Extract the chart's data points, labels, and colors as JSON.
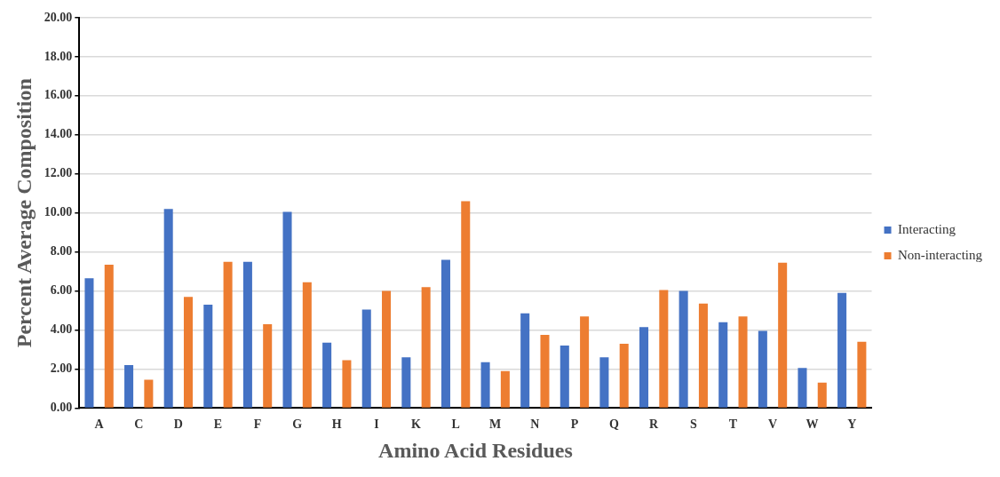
{
  "chart_data": {
    "type": "bar",
    "xlabel": "Amino Acid Residues",
    "ylabel": "Percent Average Composition",
    "categories": [
      "A",
      "C",
      "D",
      "E",
      "F",
      "G",
      "H",
      "I",
      "K",
      "L",
      "M",
      "N",
      "P",
      "Q",
      "R",
      "S",
      "T",
      "V",
      "W",
      "Y"
    ],
    "series": [
      {
        "name": "Interacting",
        "color": "#4472c4",
        "values": [
          6.65,
          2.2,
          10.2,
          5.3,
          7.5,
          10.05,
          3.35,
          5.05,
          2.6,
          7.6,
          2.35,
          4.85,
          3.2,
          2.6,
          4.15,
          6.0,
          4.4,
          3.95,
          2.05,
          5.9
        ]
      },
      {
        "name": "Non-interacting",
        "color": "#ed7d31",
        "values": [
          7.35,
          1.45,
          5.7,
          7.5,
          4.3,
          6.45,
          2.45,
          6.0,
          6.2,
          10.6,
          1.9,
          3.75,
          4.7,
          3.3,
          6.05,
          5.35,
          4.7,
          7.45,
          1.3,
          3.4
        ]
      }
    ],
    "ylim": [
      0,
      20
    ],
    "yticks": [
      {
        "value": 0,
        "label": "0.00"
      },
      {
        "value": 2,
        "label": "2.00"
      },
      {
        "value": 4,
        "label": "4.00"
      },
      {
        "value": 6,
        "label": "6.00"
      },
      {
        "value": 8,
        "label": "8.00"
      },
      {
        "value": 10,
        "label": "10.00"
      },
      {
        "value": 12,
        "label": "12.00"
      },
      {
        "value": 14,
        "label": "14.00"
      },
      {
        "value": 16,
        "label": "16.00"
      },
      {
        "value": 18,
        "label": "18.00"
      },
      {
        "value": 20,
        "label": "20.00"
      }
    ],
    "grid": "y",
    "legend": "right"
  }
}
